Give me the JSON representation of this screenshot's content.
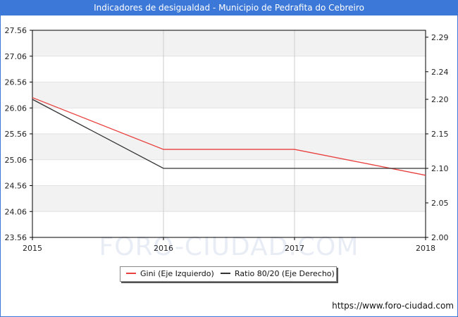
{
  "header": {
    "title": "Indicadores de desigualdad - Municipio de Pedrafita do Cebreiro"
  },
  "watermark": "FORO-CIUDAD.COM",
  "footer": {
    "url": "https://www.foro-ciudad.com"
  },
  "colors": {
    "title_bar": "#3c78d8",
    "gini": "#e8403e",
    "ratio": "#333333",
    "band": "#f2f2f2"
  },
  "chart_data": {
    "type": "line",
    "x": [
      2015,
      2016,
      2017,
      2018
    ],
    "x_tick_labels": [
      "2015",
      "2016",
      "2017",
      "2018"
    ],
    "left_axis": {
      "ylim": [
        23.56,
        27.56
      ],
      "tick_labels": [
        "27.56",
        "27.06",
        "26.56",
        "26.06",
        "25.56",
        "25.06",
        "24.56",
        "24.06",
        "23.56"
      ],
      "ticks": [
        27.56,
        27.06,
        26.56,
        26.06,
        25.56,
        25.06,
        24.56,
        24.06,
        23.56
      ]
    },
    "right_axis": {
      "ylim": [
        2.0,
        2.3
      ],
      "tick_labels": [
        "2.29",
        "2.24",
        "2.20",
        "2.15",
        "2.10",
        "2.05",
        "2.00"
      ],
      "ticks": [
        2.29,
        2.24,
        2.2,
        2.15,
        2.1,
        2.05,
        2.0
      ]
    },
    "series": [
      {
        "name": "Gini (Eje Izquierdo)",
        "axis": "left",
        "color": "#e8403e",
        "values": [
          26.26,
          25.26,
          25.26,
          24.76
        ]
      },
      {
        "name": "Ratio 80/20 (Eje Derecho)",
        "axis": "right",
        "color": "#333333",
        "values": [
          2.2,
          2.1,
          2.1,
          2.1
        ]
      }
    ],
    "grid": true,
    "legend": "bottom-center"
  }
}
